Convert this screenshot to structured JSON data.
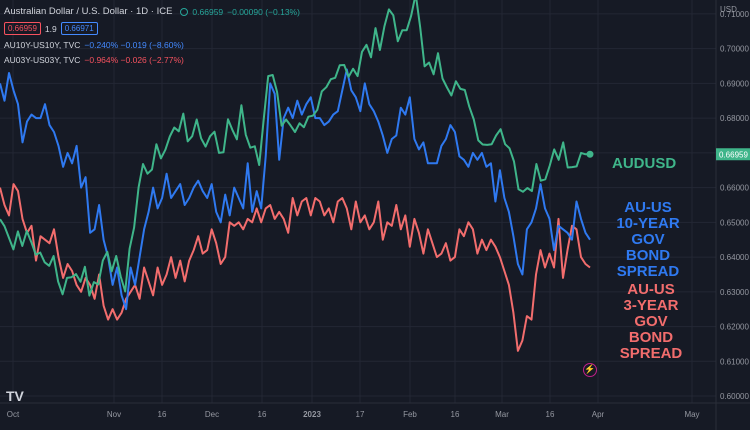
{
  "header": {
    "title": "Australian Dollar / U.S. Dollar · 1D · ICE",
    "quote": "0.66959",
    "change": "−0.00090 (−0.13%)",
    "price_badge_1": "0.66959",
    "price_badge_2": "0.66971",
    "spread": "1.9"
  },
  "legend_rows": [
    {
      "label": "AU10Y-US10Y, TVC",
      "values": "−0.240%  −0.019 (−8.60%)",
      "color": "#448aff"
    },
    {
      "label": "AU03Y-US03Y, TVC",
      "values": "−0.964%  −0.026 (−2.77%)",
      "color": "#f7525f"
    }
  ],
  "annotations": {
    "audusd": "AUDUSD",
    "ten_year": [
      "AU-US",
      "10-YEAR",
      "GOV BOND",
      "SPREAD"
    ],
    "three_year": [
      "AU-US",
      "3-YEAR",
      "GOV BOND",
      "SPREAD"
    ]
  },
  "logo": "TV",
  "colors": {
    "background": "#161a25",
    "audusd": "#3fb58a",
    "au10y": "#2f79f0",
    "au03y": "#f26d6d",
    "grid": "#232734",
    "axis_text": "#9598a1"
  },
  "chart_data": {
    "type": "line",
    "title": "Australian Dollar / U.S. Dollar · 1D · ICE",
    "y_axis_unit": "USD",
    "x_tick_labels": [
      "Oct",
      "Nov",
      "16",
      "Dec",
      "16",
      "2023",
      "17",
      "Feb",
      "16",
      "Mar",
      "16",
      "Apr",
      "May"
    ],
    "y_ticks": [
      0.6,
      0.61,
      0.62,
      0.63,
      0.64,
      0.65,
      0.66,
      0.67,
      0.68,
      0.69,
      0.7,
      0.71
    ],
    "ylim": [
      0.598,
      0.714
    ],
    "last_price_label": "0.66959",
    "grid": true,
    "series": [
      {
        "name": "AUDUSD",
        "axis": "USD",
        "values": [
          0.6509,
          0.6489,
          0.6456,
          0.6422,
          0.6474,
          0.6432,
          0.6475,
          0.6443,
          0.6407,
          0.6413,
          0.6385,
          0.6375,
          0.6403,
          0.633,
          0.6293,
          0.634,
          0.6342,
          0.6351,
          0.6329,
          0.6372,
          0.6289,
          0.6328,
          0.6321,
          0.639,
          0.6415,
          0.6359,
          0.6403,
          0.6344,
          0.6301,
          0.6424,
          0.6485,
          0.6601,
          0.6668,
          0.664,
          0.6652,
          0.6725,
          0.6684,
          0.6709,
          0.6747,
          0.6773,
          0.6762,
          0.6813,
          0.6733,
          0.6748,
          0.6796,
          0.6742,
          0.6718,
          0.6748,
          0.6761,
          0.67,
          0.6702,
          0.6797,
          0.6766,
          0.6739,
          0.6837,
          0.6752,
          0.6715,
          0.6719,
          0.6665,
          0.6796,
          0.6921,
          0.6924,
          0.6875,
          0.6778,
          0.6796,
          0.6779,
          0.676,
          0.6785,
          0.6774,
          0.6804,
          0.6807,
          0.6824,
          0.6877,
          0.6889,
          0.6912,
          0.6916,
          0.6952,
          0.6953,
          0.6919,
          0.6942,
          0.6921,
          0.6991,
          0.7011,
          0.6975,
          0.7059,
          0.6996,
          0.7064,
          0.7113,
          0.7096,
          0.7021,
          0.7053,
          0.7053,
          0.7095,
          0.7157,
          0.7061,
          0.6949,
          0.696,
          0.6926,
          0.6987,
          0.6914,
          0.6888,
          0.6865,
          0.6906,
          0.6884,
          0.6881,
          0.6833,
          0.6796,
          0.6736,
          0.6724,
          0.6723,
          0.6725,
          0.675,
          0.6768,
          0.6725,
          0.6713,
          0.6675,
          0.6595,
          0.6588,
          0.6599,
          0.659,
          0.6668,
          0.662,
          0.6624,
          0.6664,
          0.671,
          0.668,
          0.673,
          0.6658,
          0.6659,
          0.6661,
          0.67,
          0.6696,
          0.6696
        ]
      },
      {
        "name": "AU10Y-US10Y, TVC",
        "axis": "unscaled",
        "values": [
          0.69,
          0.685,
          0.693,
          0.688,
          0.684,
          0.673,
          0.679,
          0.681,
          0.68,
          0.68,
          0.684,
          0.678,
          0.676,
          0.672,
          0.666,
          0.67,
          0.667,
          0.672,
          0.66,
          0.663,
          0.647,
          0.648,
          0.655,
          0.645,
          0.64,
          0.632,
          0.637,
          0.629,
          0.625,
          0.637,
          0.632,
          0.64,
          0.648,
          0.653,
          0.66,
          0.654,
          0.657,
          0.664,
          0.657,
          0.659,
          0.661,
          0.655,
          0.657,
          0.66,
          0.662,
          0.659,
          0.657,
          0.661,
          0.653,
          0.65,
          0.658,
          0.652,
          0.66,
          0.657,
          0.654,
          0.667,
          0.653,
          0.659,
          0.654,
          0.669,
          0.69,
          0.687,
          0.668,
          0.68,
          0.683,
          0.68,
          0.685,
          0.681,
          0.684,
          0.686,
          0.68,
          0.68,
          0.678,
          0.679,
          0.681,
          0.682,
          0.688,
          0.694,
          0.688,
          0.686,
          0.682,
          0.69,
          0.684,
          0.682,
          0.679,
          0.675,
          0.67,
          0.674,
          0.675,
          0.683,
          0.681,
          0.686,
          0.674,
          0.671,
          0.673,
          0.667,
          0.667,
          0.667,
          0.672,
          0.674,
          0.678,
          0.676,
          0.669,
          0.668,
          0.666,
          0.67,
          0.668,
          0.67,
          0.666,
          0.667,
          0.656,
          0.665,
          0.657,
          0.653,
          0.646,
          0.638,
          0.635,
          0.648,
          0.65,
          0.654,
          0.661,
          0.654,
          0.651,
          0.642,
          0.649,
          0.648,
          0.647,
          0.645,
          0.656,
          0.651,
          0.647,
          0.645
        ]
      },
      {
        "name": "AU03Y-US03Y, TVC",
        "axis": "unscaled",
        "values": [
          0.66,
          0.655,
          0.652,
          0.661,
          0.659,
          0.651,
          0.647,
          0.649,
          0.639,
          0.646,
          0.645,
          0.644,
          0.648,
          0.64,
          0.634,
          0.638,
          0.636,
          0.632,
          0.63,
          0.634,
          0.632,
          0.628,
          0.635,
          0.626,
          0.622,
          0.625,
          0.622,
          0.624,
          0.628,
          0.63,
          0.632,
          0.628,
          0.637,
          0.633,
          0.629,
          0.637,
          0.632,
          0.635,
          0.64,
          0.634,
          0.639,
          0.633,
          0.639,
          0.642,
          0.646,
          0.641,
          0.642,
          0.648,
          0.644,
          0.638,
          0.64,
          0.65,
          0.649,
          0.65,
          0.648,
          0.651,
          0.65,
          0.654,
          0.65,
          0.654,
          0.655,
          0.651,
          0.653,
          0.651,
          0.647,
          0.657,
          0.652,
          0.656,
          0.657,
          0.652,
          0.657,
          0.656,
          0.652,
          0.654,
          0.65,
          0.656,
          0.657,
          0.654,
          0.648,
          0.656,
          0.65,
          0.652,
          0.648,
          0.65,
          0.656,
          0.645,
          0.65,
          0.649,
          0.655,
          0.648,
          0.652,
          0.643,
          0.651,
          0.647,
          0.641,
          0.648,
          0.644,
          0.64,
          0.641,
          0.644,
          0.639,
          0.64,
          0.648,
          0.646,
          0.65,
          0.648,
          0.641,
          0.645,
          0.642,
          0.645,
          0.643,
          0.64,
          0.636,
          0.632,
          0.624,
          0.613,
          0.616,
          0.623,
          0.622,
          0.635,
          0.642,
          0.637,
          0.641,
          0.637,
          0.651,
          0.634,
          0.642,
          0.649,
          0.648,
          0.64,
          0.638,
          0.637
        ]
      }
    ]
  }
}
